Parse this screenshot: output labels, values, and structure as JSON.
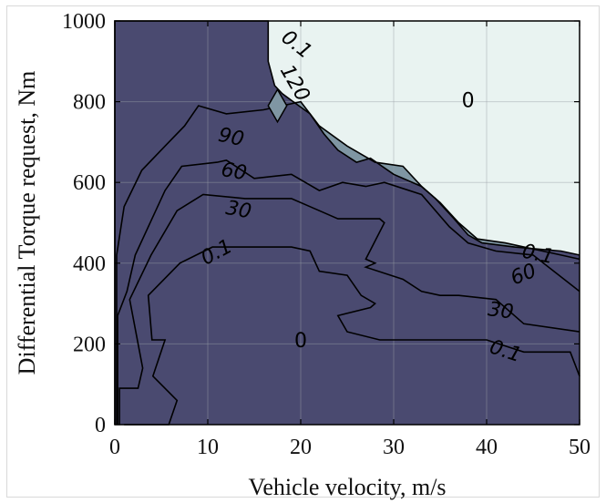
{
  "chart_data": {
    "type": "contour",
    "title": "",
    "xlabel": "Vehicle velocity, m/s",
    "ylabel": "Differential Torque request, Nm",
    "xlim": [
      0,
      50
    ],
    "ylim": [
      0,
      1000
    ],
    "xticks": [
      "0",
      "10",
      "20",
      "30",
      "40",
      "50"
    ],
    "yticks": [
      "0",
      "200",
      "400",
      "600",
      "800",
      "1000"
    ],
    "grid": true,
    "levels": [
      {
        "name": "0.1",
        "color": "#d7ebe8",
        "points": [
          [
            1,
            0
          ],
          [
            5.8,
            0
          ],
          [
            6.7,
            60
          ],
          [
            4.1,
            120
          ],
          [
            5.4,
            210
          ],
          [
            4,
            210
          ],
          [
            3.6,
            320
          ],
          [
            7,
            400
          ],
          [
            10.5,
            440
          ],
          [
            19,
            440
          ],
          [
            21,
            430
          ],
          [
            22,
            380
          ],
          [
            25,
            370
          ],
          [
            26.5,
            320
          ],
          [
            28,
            300
          ],
          [
            27.5,
            290
          ],
          [
            24,
            270
          ],
          [
            25,
            230
          ],
          [
            28.5,
            210
          ],
          [
            40,
            210
          ],
          [
            44,
            180
          ],
          [
            49,
            180
          ],
          [
            50,
            120
          ],
          [
            50,
            0
          ]
        ]
      },
      {
        "name": "30",
        "color": "#b7d8d5",
        "points": [
          [
            0.5,
            0
          ],
          [
            0.5,
            90
          ],
          [
            2.5,
            90
          ],
          [
            3,
            140
          ],
          [
            1.6,
            310
          ],
          [
            3.9,
            420
          ],
          [
            6.7,
            530
          ],
          [
            9.5,
            570
          ],
          [
            14,
            560
          ],
          [
            19,
            560
          ],
          [
            22,
            530
          ],
          [
            24,
            510
          ],
          [
            28.5,
            510
          ],
          [
            29,
            500
          ],
          [
            27,
            410
          ],
          [
            28,
            400
          ],
          [
            27,
            390
          ],
          [
            31,
            360
          ],
          [
            33,
            330
          ],
          [
            35,
            320
          ],
          [
            37,
            320
          ],
          [
            41,
            310
          ],
          [
            44,
            250
          ],
          [
            50,
            230
          ],
          [
            50,
            0
          ]
        ]
      },
      {
        "name": "60",
        "color": "#9cc5c4",
        "points": [
          [
            0.3,
            0
          ],
          [
            0.3,
            270
          ],
          [
            1.3,
            330
          ],
          [
            2.2,
            420
          ],
          [
            5.4,
            580
          ],
          [
            7.2,
            640
          ],
          [
            11,
            650
          ],
          [
            12,
            655
          ],
          [
            15,
            610
          ],
          [
            19,
            620
          ],
          [
            22,
            580
          ],
          [
            24.5,
            600
          ],
          [
            27,
            590
          ],
          [
            29,
            600
          ],
          [
            33,
            570
          ],
          [
            36,
            490
          ],
          [
            38,
            450
          ],
          [
            41,
            430
          ],
          [
            45,
            420
          ],
          [
            50,
            330
          ],
          [
            50,
            0
          ]
        ]
      },
      {
        "name": "90",
        "color": "#7f96a3",
        "points": [
          [
            0.2,
            0
          ],
          [
            0.2,
            420
          ],
          [
            1,
            540
          ],
          [
            2.9,
            630
          ],
          [
            5.4,
            690
          ],
          [
            7.5,
            740
          ],
          [
            9,
            790
          ],
          [
            12,
            770
          ],
          [
            16,
            780
          ],
          [
            20,
            800
          ],
          [
            22,
            740
          ],
          [
            25,
            690
          ],
          [
            28,
            650
          ],
          [
            31,
            640
          ],
          [
            33,
            590
          ],
          [
            35,
            550
          ],
          [
            37,
            500
          ],
          [
            39,
            460
          ],
          [
            42,
            450
          ],
          [
            48,
            420
          ],
          [
            50,
            410
          ],
          [
            50,
            0
          ]
        ]
      },
      {
        "name": "120",
        "color": "#4a4a70",
        "points": [
          [
            0,
            0
          ],
          [
            0,
            1000
          ],
          [
            16.5,
            1000
          ],
          [
            16.5,
            900
          ],
          [
            17.2,
            840
          ],
          [
            18,
            820
          ],
          [
            19.2,
            800
          ],
          [
            21,
            770
          ],
          [
            22.5,
            720
          ],
          [
            24,
            680
          ],
          [
            26,
            650
          ],
          [
            27.5,
            660
          ],
          [
            30,
            620
          ],
          [
            33,
            590
          ],
          [
            34.5,
            560
          ],
          [
            36.5,
            510
          ],
          [
            38,
            470
          ],
          [
            39.5,
            450
          ],
          [
            43,
            440
          ],
          [
            48,
            430
          ],
          [
            50,
            420
          ],
          [
            50,
            0
          ]
        ]
      },
      {
        "name": "0",
        "color": "#e9f3f1",
        "points": [
          [
            0,
            0
          ],
          [
            0,
            1000
          ],
          [
            50,
            1000
          ],
          [
            50,
            0
          ]
        ]
      }
    ],
    "contour_labels": [
      "0.1",
      "120",
      "90",
      "60",
      "30",
      "0.1",
      "0",
      "0",
      "0.1",
      "60",
      "30",
      "0.1"
    ],
    "region_labels": [
      "0",
      "0"
    ]
  }
}
